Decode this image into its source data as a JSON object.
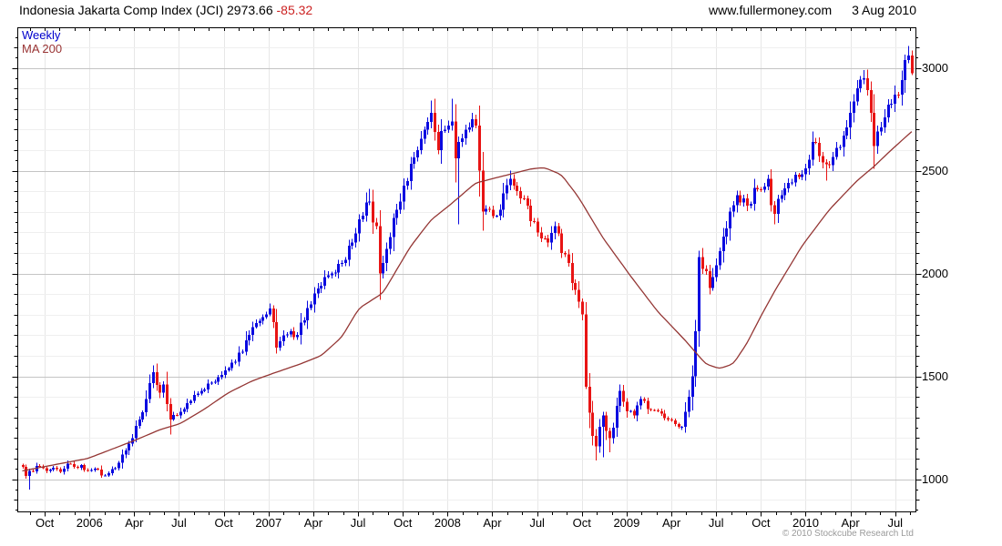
{
  "header": {
    "title": "Indonesia Jakarta Comp Index (JCI) 2973.66",
    "change": "-85.32",
    "website": "www.fullermoney.com",
    "date": "3 Aug 2010"
  },
  "legend": {
    "series1": "Weekly",
    "series2": "MA 200"
  },
  "footer": {
    "copyright": "© 2010 Stockcube Research Ltd"
  },
  "colors": {
    "up_candle": "#0a0ae0",
    "down_candle": "#e81414",
    "ma_line": "#943634",
    "change_text": "#cc2222",
    "legend_weekly": "#0000cc",
    "legend_ma": "#993333",
    "grid_minor": "#efefef",
    "grid_major": "#c4c4c4",
    "grid_vertical": "#e7e7e7",
    "axis": "#000000",
    "copyright_text": "#9a9a9a"
  },
  "chart_data": {
    "type": "candlestick",
    "title": "Indonesia Jakarta Comp Index (JCI)",
    "period": "Weekly",
    "overlay": "MA 200",
    "last_bar": {
      "close": 2973.66,
      "change": -85.32,
      "date": "3 Aug 2010"
    },
    "x_range": [
      "Aug 2005",
      "Aug 2010"
    ],
    "weeks_total": 260,
    "y_axis": {
      "ticks": [
        1000,
        1500,
        2000,
        2500,
        3000
      ],
      "minor_step": 100,
      "visible_range": [
        845,
        3190
      ]
    },
    "x_ticks": [
      {
        "label": "Oct",
        "m": 2
      },
      {
        "label": "2006",
        "m": 5
      },
      {
        "label": "Apr",
        "m": 8
      },
      {
        "label": "Jul",
        "m": 11
      },
      {
        "label": "Oct",
        "m": 14
      },
      {
        "label": "2007",
        "m": 17
      },
      {
        "label": "Apr",
        "m": 20
      },
      {
        "label": "Jul",
        "m": 23
      },
      {
        "label": "Oct",
        "m": 26
      },
      {
        "label": "2008",
        "m": 29
      },
      {
        "label": "Apr",
        "m": 32
      },
      {
        "label": "Jul",
        "m": 35
      },
      {
        "label": "Oct",
        "m": 38
      },
      {
        "label": "2009",
        "m": 41
      },
      {
        "label": "Apr",
        "m": 44
      },
      {
        "label": "Jul",
        "m": 47
      },
      {
        "label": "Oct",
        "m": 50
      },
      {
        "label": "2010",
        "m": 53
      },
      {
        "label": "Apr",
        "m": 56
      },
      {
        "label": "Jul",
        "m": 59
      }
    ],
    "close_anchors": [
      [
        0,
        1060
      ],
      [
        1,
        1015
      ],
      [
        2,
        1040,
        null,
        950
      ],
      [
        5,
        1062
      ],
      [
        7,
        1040
      ],
      [
        9,
        1055
      ],
      [
        11,
        1035
      ],
      [
        13,
        1075
      ],
      [
        15,
        1060
      ],
      [
        17,
        1068
      ],
      [
        19,
        1040
      ],
      [
        21,
        1050
      ],
      [
        23,
        1018
      ],
      [
        25,
        1028
      ],
      [
        26,
        1048
      ],
      [
        28,
        1080
      ],
      [
        30,
        1140
      ],
      [
        32,
        1200
      ],
      [
        34,
        1290
      ],
      [
        36,
        1390
      ],
      [
        38,
        1520,
        1553,
        null
      ],
      [
        40,
        1420
      ],
      [
        41,
        1460
      ],
      [
        43,
        1290,
        null,
        1217
      ],
      [
        45,
        1310
      ],
      [
        47,
        1340
      ],
      [
        49,
        1380
      ],
      [
        52,
        1430
      ],
      [
        55,
        1470
      ],
      [
        57,
        1495
      ],
      [
        60,
        1540
      ],
      [
        62,
        1570
      ],
      [
        64,
        1620
      ],
      [
        67,
        1740
      ],
      [
        69,
        1770
      ],
      [
        71,
        1800
      ],
      [
        72,
        1830,
        1854,
        null
      ],
      [
        74,
        1640,
        null,
        1611
      ],
      [
        76,
        1700
      ],
      [
        78,
        1720
      ],
      [
        79,
        1690
      ],
      [
        81,
        1760
      ],
      [
        84,
        1850
      ],
      [
        87,
        1940
      ],
      [
        90,
        2000
      ],
      [
        93,
        2050
      ],
      [
        96,
        2150
      ],
      [
        99,
        2280
      ],
      [
        101,
        2350,
        2411,
        null
      ],
      [
        103,
        2230
      ],
      [
        104,
        2000,
        null,
        1872
      ],
      [
        106,
        2120
      ],
      [
        108,
        2270
      ],
      [
        110,
        2350
      ],
      [
        112,
        2450
      ],
      [
        115,
        2600
      ],
      [
        117,
        2700
      ],
      [
        119,
        2780,
        2841,
        null
      ],
      [
        121,
        2600
      ],
      [
        123,
        2700
      ],
      [
        125,
        2740,
        2850,
        null
      ],
      [
        126,
        2560
      ],
      [
        127,
        2640,
        null,
        2240
      ],
      [
        129,
        2700
      ],
      [
        131,
        2750
      ],
      [
        132,
        2720
      ],
      [
        134,
        2300,
        null,
        2208
      ],
      [
        136,
        2310
      ],
      [
        138,
        2280
      ],
      [
        140,
        2390
      ],
      [
        142,
        2460,
        2500,
        null
      ],
      [
        144,
        2400
      ],
      [
        147,
        2330
      ],
      [
        150,
        2200
      ],
      [
        153,
        2150
      ],
      [
        155,
        2230
      ],
      [
        157,
        2100
      ],
      [
        159,
        2050
      ],
      [
        161,
        1920
      ],
      [
        163,
        1800
      ],
      [
        164,
        1450,
        1860,
        1438
      ],
      [
        166,
        1210
      ],
      [
        167,
        1160,
        null,
        1090
      ],
      [
        169,
        1310,
        null,
        1106
      ],
      [
        171,
        1200,
        null,
        1130
      ],
      [
        174,
        1430
      ],
      [
        176,
        1330
      ],
      [
        178,
        1310
      ],
      [
        180,
        1390
      ],
      [
        182,
        1340
      ],
      [
        185,
        1330
      ],
      [
        188,
        1290
      ],
      [
        192,
        1255,
        null,
        1240
      ],
      [
        194,
        1400
      ],
      [
        195,
        1500
      ],
      [
        196,
        1720
      ],
      [
        197,
        2080,
        2110,
        null
      ],
      [
        199,
        2010
      ],
      [
        200,
        1930,
        null,
        1898
      ],
      [
        202,
        2040
      ],
      [
        204,
        2180
      ],
      [
        206,
        2300
      ],
      [
        208,
        2380
      ],
      [
        211,
        2330
      ],
      [
        214,
        2410
      ],
      [
        217,
        2460,
        2480,
        null
      ],
      [
        219,
        2290,
        null,
        2240
      ],
      [
        221,
        2380
      ],
      [
        223,
        2440
      ],
      [
        226,
        2470
      ],
      [
        228,
        2510
      ],
      [
        230,
        2640,
        2690,
        null
      ],
      [
        232,
        2570
      ],
      [
        234,
        2530,
        null,
        2451
      ],
      [
        237,
        2610
      ],
      [
        239,
        2670
      ],
      [
        241,
        2780
      ],
      [
        243,
        2900
      ],
      [
        245,
        2950,
        2990,
        null
      ],
      [
        247,
        2780
      ],
      [
        248,
        2620,
        null,
        2509
      ],
      [
        250,
        2710
      ],
      [
        252,
        2820
      ],
      [
        254,
        2870
      ],
      [
        256,
        2940
      ],
      [
        258,
        3060,
        3106,
        null
      ],
      [
        259,
        2973.66,
        3084,
        2965
      ]
    ],
    "ma_anchors": [
      [
        0,
        1040
      ],
      [
        10,
        1072
      ],
      [
        19,
        1100
      ],
      [
        26,
        1145
      ],
      [
        33,
        1190
      ],
      [
        40,
        1240
      ],
      [
        46,
        1270
      ],
      [
        53,
        1340
      ],
      [
        60,
        1420
      ],
      [
        67,
        1478
      ],
      [
        74,
        1520
      ],
      [
        81,
        1560
      ],
      [
        87,
        1600
      ],
      [
        93,
        1690
      ],
      [
        98,
        1830
      ],
      [
        105,
        1905
      ],
      [
        113,
        2130
      ],
      [
        119,
        2260
      ],
      [
        125,
        2340
      ],
      [
        132,
        2440
      ],
      [
        141,
        2478
      ],
      [
        148,
        2508
      ],
      [
        152,
        2515
      ],
      [
        157,
        2480
      ],
      [
        162,
        2370
      ],
      [
        169,
        2175
      ],
      [
        177,
        1990
      ],
      [
        185,
        1815
      ],
      [
        193,
        1675
      ],
      [
        199,
        1560
      ],
      [
        203,
        1537
      ],
      [
        207,
        1560
      ],
      [
        211,
        1660
      ],
      [
        215,
        1790
      ],
      [
        219,
        1912
      ],
      [
        227,
        2133
      ],
      [
        235,
        2310
      ],
      [
        243,
        2450
      ],
      [
        248,
        2520
      ],
      [
        253,
        2600
      ],
      [
        259,
        2690
      ]
    ]
  }
}
